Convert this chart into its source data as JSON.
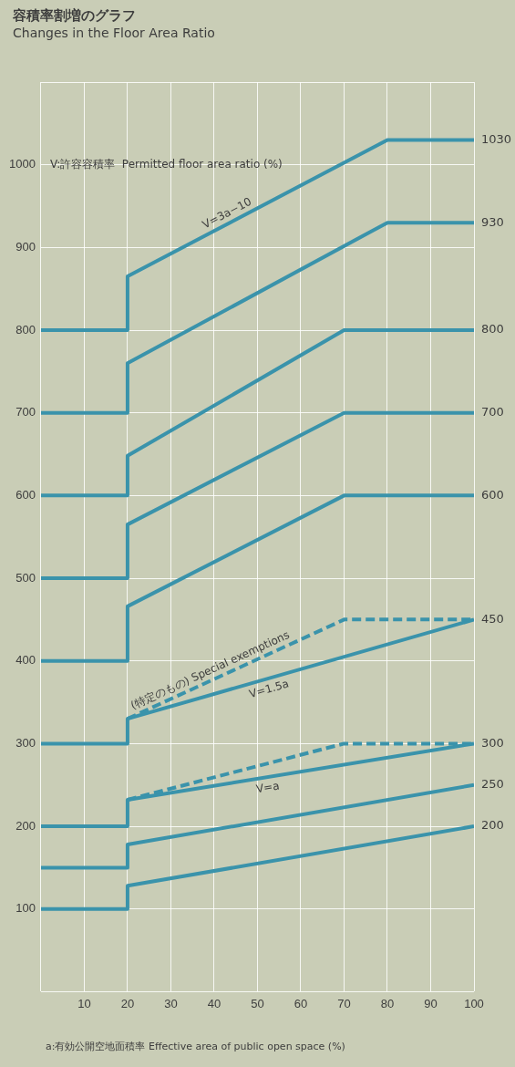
{
  "chart_data": {
    "type": "line",
    "title": "容積率割増のグラフ",
    "subtitle": "Changes in the Floor Area Ratio",
    "xlabel": "a:有効公開空地面積率  Effective area of public open space (%)",
    "ylabel": "V:許容容積率  Permitted floor area ratio (%)",
    "xlim": [
      0,
      100
    ],
    "xticks": [
      {
        "value": 0,
        "label": null
      },
      10,
      20,
      30,
      40,
      50,
      60,
      70,
      80,
      90,
      100
    ],
    "ylim": [
      0,
      1100
    ],
    "yticks": [
      {
        "value": 0,
        "label": null
      },
      100,
      200,
      300,
      400,
      500,
      600,
      700,
      800,
      900,
      1000,
      {
        "value": 1100,
        "label": null
      }
    ],
    "grid": true,
    "legend": false,
    "marker": "none",
    "series": [
      {
        "name": "V=3a−10",
        "color": "#3a93ab",
        "x": [
          0,
          20,
          20,
          80,
          100
        ],
        "values": [
          800,
          800,
          865,
          1030,
          1030
        ],
        "value_labels": [
          null,
          null,
          null,
          null,
          "1030"
        ]
      },
      {
        "color": "#3a93ab",
        "x": [
          0,
          20,
          20,
          80,
          100
        ],
        "values": [
          700,
          700,
          760,
          930,
          930
        ],
        "value_labels": [
          null,
          null,
          null,
          null,
          "930"
        ]
      },
      {
        "color": "#3a93ab",
        "x": [
          0,
          20,
          20,
          70,
          100
        ],
        "values": [
          600,
          600,
          648,
          800,
          800
        ],
        "value_labels": [
          null,
          null,
          null,
          null,
          "800"
        ]
      },
      {
        "color": "#3a93ab",
        "x": [
          0,
          20,
          20,
          70,
          100
        ],
        "values": [
          500,
          500,
          565,
          700,
          700
        ],
        "value_labels": [
          null,
          null,
          null,
          null,
          "700"
        ]
      },
      {
        "color": "#3a93ab",
        "x": [
          0,
          20,
          20,
          70,
          100
        ],
        "values": [
          400,
          400,
          466,
          600,
          600
        ],
        "value_labels": [
          null,
          null,
          null,
          null,
          "600"
        ]
      },
      {
        "name": "(特定のもの) Special exemptions",
        "color": "#3a93ab",
        "x": [
          20,
          70,
          100
        ],
        "values": [
          330,
          450,
          450
        ],
        "line_style": "dashed"
      },
      {
        "name": "V=1.5a",
        "color": "#3a93ab",
        "x": [
          0,
          20,
          20,
          100
        ],
        "values": [
          300,
          300,
          330,
          450
        ],
        "value_labels": [
          null,
          null,
          null,
          "450"
        ]
      },
      {
        "color": "#3a93ab",
        "x": [
          20,
          70,
          100
        ],
        "values": [
          232,
          300,
          300
        ],
        "line_style": "dashed"
      },
      {
        "name": "V=a",
        "color": "#3a93ab",
        "x": [
          0,
          20,
          20,
          100
        ],
        "values": [
          200,
          200,
          232,
          300
        ],
        "value_labels": [
          null,
          null,
          null,
          "300"
        ]
      },
      {
        "color": "#3a93ab",
        "x": [
          0,
          20,
          20,
          100
        ],
        "values": [
          150,
          150,
          178,
          250
        ],
        "value_labels": [
          null,
          null,
          null,
          "250"
        ]
      },
      {
        "color": "#3a93ab",
        "x": [
          0,
          20,
          20,
          100
        ],
        "values": [
          100,
          100,
          128,
          200
        ],
        "value_labels": [
          null,
          null,
          null,
          "200"
        ]
      }
    ]
  }
}
